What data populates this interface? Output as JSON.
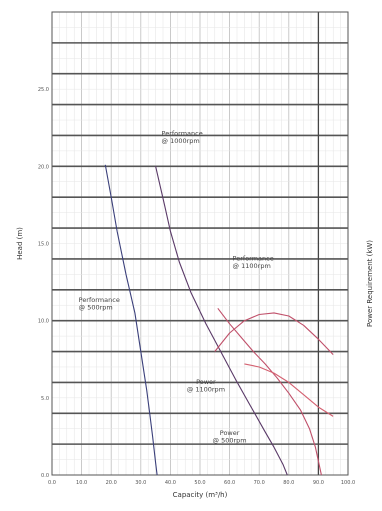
{
  "chart_data": {
    "type": "line",
    "title": "",
    "xlabel": "Capacity (m³/h)",
    "ylabel": "Head (m)",
    "y2label": "Power Requirement (kW)",
    "xlim": [
      0,
      100
    ],
    "ylim": [
      0,
      30
    ],
    "y2lim": [
      0,
      3
    ],
    "x_ticks": [
      "0.0",
      "10.0",
      "20.0",
      "30.0",
      "40.0",
      "50.0",
      "60.0",
      "70.0",
      "80.0",
      "90.0",
      "100.0"
    ],
    "y_ticks": [
      "0.0",
      "5.0",
      "10.0",
      "15.0",
      "20.0",
      "25.0"
    ],
    "grid": true,
    "series": [
      {
        "name": "Performance @ 500rpm",
        "axis": "left",
        "color": "#3a3f7a",
        "x": [
          18,
          20,
          22,
          25,
          28,
          30,
          32,
          33,
          34,
          35,
          35.5
        ],
        "y": [
          20.1,
          18,
          15.8,
          13,
          10.5,
          8,
          5.5,
          4,
          2.5,
          0.8,
          0
        ]
      },
      {
        "name": "Performance @ 1000rpm",
        "axis": "left",
        "color": "#5a3a68",
        "x": [
          35,
          38,
          40,
          43,
          47,
          52,
          57,
          62,
          67,
          72,
          75,
          78,
          79.5
        ],
        "y": [
          20,
          17.5,
          15.8,
          13.8,
          11.8,
          9.8,
          8,
          6.2,
          4.5,
          2.8,
          1.8,
          0.7,
          0
        ]
      },
      {
        "name": "Performance @ 1100rpm",
        "axis": "left",
        "color": "#c0506a",
        "x": [
          56,
          60,
          64,
          68,
          72,
          76,
          80,
          84,
          87,
          89,
          91
        ],
        "y": [
          10.8,
          9.8,
          8.9,
          8,
          7.2,
          6.3,
          5.3,
          4.2,
          3,
          1.8,
          0
        ]
      },
      {
        "name": "Power @ 1100rpm",
        "axis": "right",
        "color": "#c0506a",
        "x": [
          55,
          60,
          65,
          70,
          75,
          80,
          85,
          90,
          95
        ],
        "y": [
          0.8,
          0.92,
          1,
          1.04,
          1.05,
          1.03,
          0.97,
          0.88,
          0.78
        ]
      },
      {
        "name": "Power @ 500rpm",
        "axis": "right",
        "color": "#d46070",
        "x": [
          65,
          70,
          75,
          80,
          85,
          90,
          95
        ],
        "y": [
          0.72,
          0.7,
          0.66,
          0.6,
          0.52,
          0.44,
          0.38
        ]
      }
    ],
    "annotations": [
      {
        "line1": "Performance",
        "line2": "@ 1000rpm",
        "x": 37,
        "y": 22.0,
        "anchor": "start"
      },
      {
        "line1": "Performance",
        "line2": "@ 1100rpm",
        "x": 61,
        "y": 13.9,
        "anchor": "start"
      },
      {
        "line1": "Performance",
        "line2": "@ 500rpm",
        "x": 9,
        "y": 11.2,
        "anchor": "start"
      },
      {
        "line1": "Power",
        "line2": "@ 1100rpm",
        "x": 52,
        "y": 5.9,
        "anchor": "middle"
      },
      {
        "line1": "Power",
        "line2": "@ 500rpm",
        "x": 60,
        "y": 2.6,
        "anchor": "middle"
      }
    ]
  }
}
